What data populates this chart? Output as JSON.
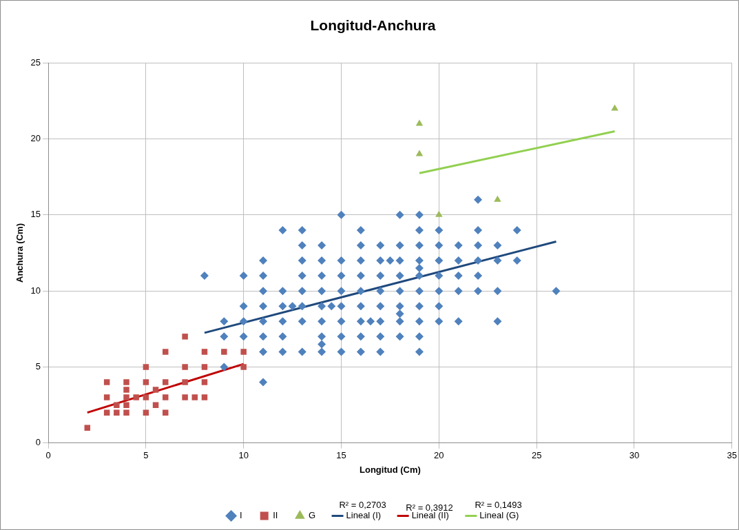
{
  "chart_data": {
    "type": "scatter",
    "title": "Longitud-Anchura",
    "xlabel": "Longitud (Cm)",
    "ylabel": "Anchura (Cm)",
    "xlim": [
      0,
      35
    ],
    "xticks": [
      0,
      5,
      10,
      15,
      20,
      25,
      30,
      35
    ],
    "ylim": [
      0,
      25
    ],
    "yticks": [
      0,
      5,
      10,
      15,
      20,
      25
    ],
    "grid": true,
    "legend": "bottom",
    "annotations": [
      "R² = 0,2703",
      "R² = 0,3912",
      "R² = 0,1493"
    ],
    "series": [
      {
        "name": "I",
        "marker": "diamond",
        "color": "#4f81bd",
        "x": [
          8,
          9,
          9,
          9,
          10,
          10,
          10,
          10,
          11,
          11,
          11,
          11,
          11,
          11,
          11,
          11,
          12,
          12,
          12,
          12,
          12,
          12,
          12.5,
          13,
          13,
          13,
          13,
          13,
          13,
          13,
          13,
          14,
          14,
          14,
          14,
          14,
          14,
          14,
          14,
          14,
          14.5,
          15,
          15,
          15,
          15,
          15,
          15,
          15,
          15,
          16,
          16,
          16,
          16,
          16,
          16,
          16,
          16,
          16,
          16.5,
          17,
          17,
          17,
          17,
          17,
          17,
          17,
          17,
          17.5,
          18,
          18,
          18,
          18,
          18,
          18,
          18,
          18,
          18,
          19,
          19,
          19,
          19,
          19,
          19,
          19,
          19,
          19,
          19,
          19,
          20,
          20,
          20,
          20,
          20,
          20,
          20,
          21,
          21,
          21,
          21,
          21,
          22,
          22,
          22,
          22,
          22,
          22,
          23,
          23,
          23,
          23,
          24,
          24,
          26
        ],
        "values": [
          11,
          8,
          7,
          5,
          11,
          9,
          8,
          7,
          12,
          11,
          10,
          9,
          8,
          7,
          6,
          4,
          14,
          10,
          9,
          8,
          7,
          6,
          9,
          14,
          13,
          12,
          11,
          10,
          9,
          8,
          6,
          13,
          12,
          11,
          10,
          9,
          8,
          7,
          6.5,
          6,
          9,
          15,
          12,
          11,
          10,
          9,
          8,
          7,
          6,
          14,
          13,
          12,
          11,
          10,
          9,
          8,
          7,
          6,
          8,
          13,
          12,
          11,
          10,
          9,
          8,
          7,
          6,
          12,
          15,
          13,
          12,
          11,
          10,
          9,
          8.5,
          8,
          7,
          15,
          14,
          13,
          12,
          11.5,
          11,
          10,
          9,
          8,
          7,
          6,
          14,
          13,
          12,
          11,
          10,
          9,
          8,
          13,
          12,
          11,
          10,
          8,
          16,
          14,
          13,
          12,
          11,
          10,
          13,
          12,
          10,
          8,
          14,
          12,
          10
        ]
      },
      {
        "name": "II",
        "marker": "square",
        "color": "#c0504d",
        "x": [
          2,
          3,
          3,
          3,
          3.5,
          3.5,
          4,
          4,
          4,
          4,
          4,
          4.5,
          5,
          5,
          5,
          5,
          5.5,
          5.5,
          6,
          6,
          6,
          6,
          7,
          7,
          7,
          7,
          7.5,
          8,
          8,
          8,
          8,
          9,
          10,
          10
        ],
        "values": [
          1,
          4,
          3,
          2,
          2.5,
          2,
          4,
          3.5,
          3,
          2.5,
          2,
          3,
          5,
          4,
          3,
          2,
          3.5,
          2.5,
          6,
          4,
          3,
          2,
          7,
          5,
          4,
          3,
          3,
          6,
          5,
          4,
          3,
          6,
          6,
          5
        ]
      },
      {
        "name": "G",
        "marker": "triangle",
        "color": "#9bbb59",
        "x": [
          19,
          19,
          20,
          23,
          29
        ],
        "values": [
          21,
          19,
          15,
          16,
          22
        ]
      },
      {
        "name": "Lineal (I)",
        "type": "line",
        "marker": "none",
        "line_style": "solid",
        "color": "#1f497d",
        "x": [
          8,
          26
        ],
        "values": [
          7.25,
          13.25
        ]
      },
      {
        "name": "Lineal (II)",
        "type": "line",
        "marker": "none",
        "line_style": "solid",
        "color": "#c00000",
        "x": [
          2,
          10
        ],
        "values": [
          2,
          5.2
        ]
      },
      {
        "name": "Lineal (G)",
        "type": "line",
        "marker": "none",
        "line_style": "solid",
        "color": "#92d050",
        "x": [
          19,
          29
        ],
        "values": [
          17.75,
          20.5
        ]
      }
    ]
  }
}
